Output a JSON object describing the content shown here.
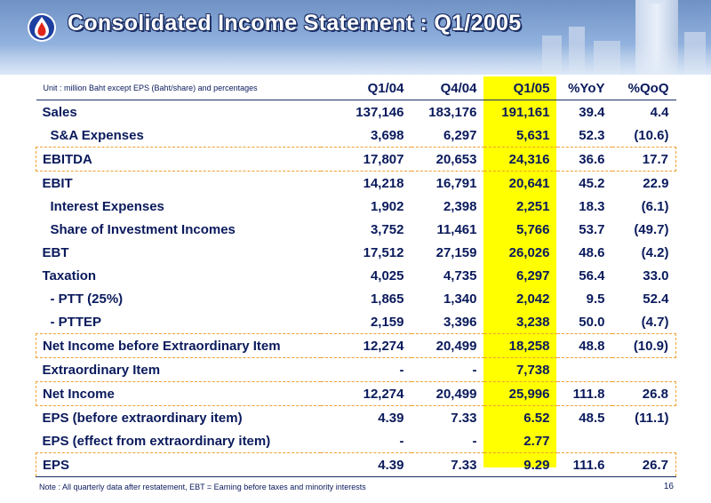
{
  "title": "Consolidated Income Statement : Q1/2005",
  "table": {
    "unit_note": "Unit : million Baht except EPS (Baht/share) and percentages",
    "columns": [
      "Q1/04",
      "Q4/04",
      "Q1/05",
      "%YoY",
      "%QoQ"
    ],
    "rows": [
      {
        "label": "Sales",
        "values": [
          "137,146",
          "183,176",
          "191,161",
          "39.4",
          "4.4"
        ]
      },
      {
        "label": "S&A Expenses",
        "values": [
          "3,698",
          "6,297",
          "5,631",
          "52.3",
          "(10.6)"
        ]
      },
      {
        "label": "EBITDA",
        "values": [
          "17,807",
          "20,653",
          "24,316",
          "36.6",
          "17.7"
        ]
      },
      {
        "label": "EBIT",
        "values": [
          "14,218",
          "16,791",
          "20,641",
          "45.2",
          "22.9"
        ]
      },
      {
        "label": "Interest Expenses",
        "values": [
          "1,902",
          "2,398",
          "2,251",
          "18.3",
          "(6.1)"
        ]
      },
      {
        "label": "Share of Investment Incomes",
        "values": [
          "3,752",
          "11,461",
          "5,766",
          "53.7",
          "(49.7)"
        ]
      },
      {
        "label": "EBT",
        "values": [
          "17,512",
          "27,159",
          "26,026",
          "48.6",
          "(4.2)"
        ]
      },
      {
        "label": "Taxation",
        "values": [
          "4,025",
          "4,735",
          "6,297",
          "56.4",
          "33.0"
        ]
      },
      {
        "label": "- PTT (25%)",
        "values": [
          "1,865",
          "1,340",
          "2,042",
          "9.5",
          "52.4"
        ]
      },
      {
        "label": "- PTTEP",
        "values": [
          "2,159",
          "3,396",
          "3,238",
          "50.0",
          "(4.7)"
        ]
      },
      {
        "label": "Net Income before Extraordinary Item",
        "values": [
          "12,274",
          "20,499",
          "18,258",
          "48.8",
          "(10.9)"
        ]
      },
      {
        "label": "Extraordinary Item",
        "values": [
          "-",
          "-",
          "7,738",
          "",
          ""
        ]
      },
      {
        "label": "Net Income",
        "values": [
          "12,274",
          "20,499",
          "25,996",
          "111.8",
          "26.8"
        ]
      },
      {
        "label": "EPS (before extraordinary item)",
        "values": [
          "4.39",
          "7.33",
          "6.52",
          "48.5",
          "(11.1)"
        ]
      },
      {
        "label": "EPS (effect from extraordinary item)",
        "values": [
          "-",
          "-",
          "2.77",
          "",
          ""
        ]
      },
      {
        "label": "EPS",
        "values": [
          "4.39",
          "7.33",
          "9.29",
          "111.6",
          "26.7"
        ]
      }
    ]
  },
  "footer": {
    "note": "Note : All quarterly data after restatement, EBT = Earning before taxes and minority interests",
    "page_number": "16"
  },
  "colors": {
    "header_blue": "#6f91c4",
    "text_navy": "#0a1a5c",
    "highlight_yellow": "#ffff00",
    "dashed_box_orange": "#f0a030"
  }
}
